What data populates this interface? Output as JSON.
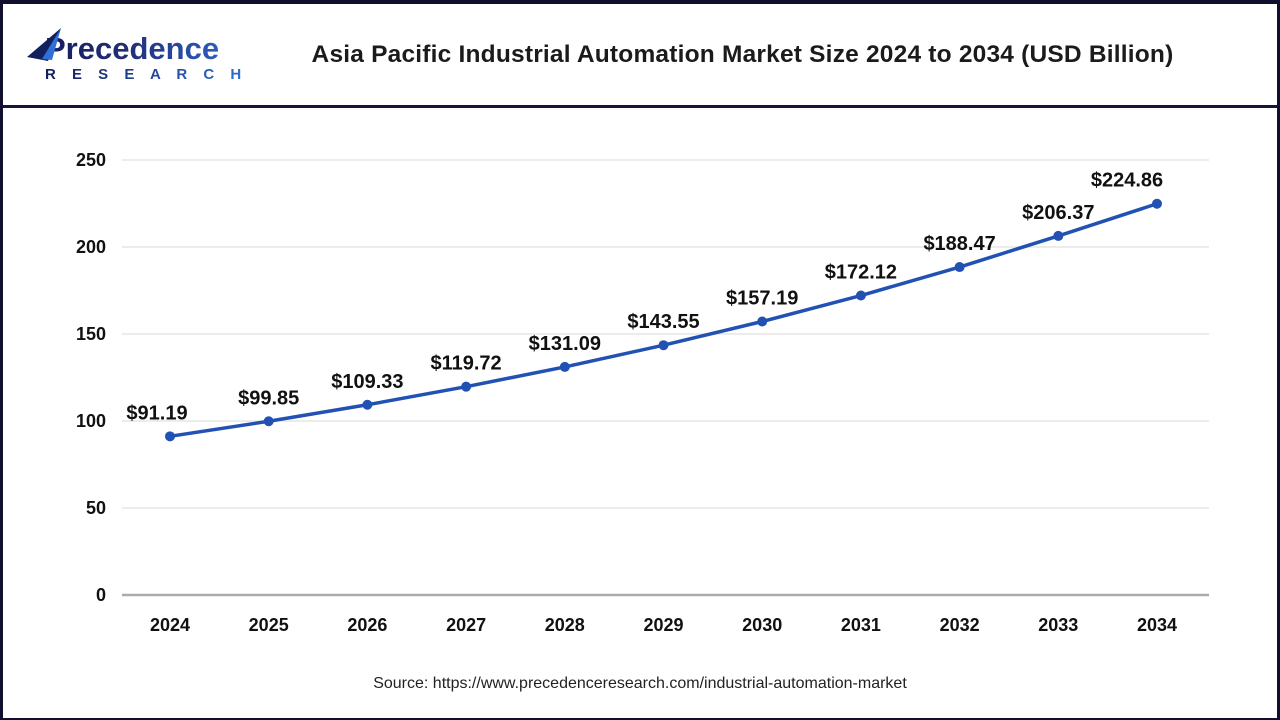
{
  "header": {
    "logo": {
      "name": "Precedence",
      "subtitle": "R E S E A R C H"
    },
    "title": "Asia Pacific Industrial Automation Market Size 2024 to 2034 (USD Billion)"
  },
  "chart_data": {
    "type": "line",
    "title": "Asia Pacific Industrial Automation Market Size 2024 to 2034 (USD Billion)",
    "categories": [
      "2024",
      "2025",
      "2026",
      "2027",
      "2028",
      "2029",
      "2030",
      "2031",
      "2032",
      "2033",
      "2034"
    ],
    "values": [
      91.19,
      99.85,
      109.33,
      119.72,
      131.09,
      143.55,
      157.19,
      172.12,
      188.47,
      206.37,
      224.86
    ],
    "labels": [
      "$91.19",
      "$99.85",
      "$109.33",
      "$119.72",
      "$131.09",
      "$143.55",
      "$157.19",
      "$172.12",
      "$188.47",
      "$206.37",
      "$224.86"
    ],
    "xlabel": "",
    "ylabel": "",
    "ylim": [
      0,
      250
    ],
    "yticks": [
      0,
      50,
      100,
      150,
      200,
      250
    ],
    "grid": true,
    "legend": "none",
    "line_color": "#2152b3",
    "point_color": "#2152b3",
    "gridline_color": "#e6e6e6",
    "zero_axis_color": "#ababab",
    "unit": "USD Billion"
  },
  "footer": {
    "source": "Source: https://www.precedenceresearch.com/industrial-automation-market"
  },
  "colors": {
    "page_border": "#10102e",
    "header_rule": "#15153c",
    "logo_dark": "#141d5c",
    "logo_blue": "#2f6fd6",
    "title_text": "#1b1b1b"
  }
}
